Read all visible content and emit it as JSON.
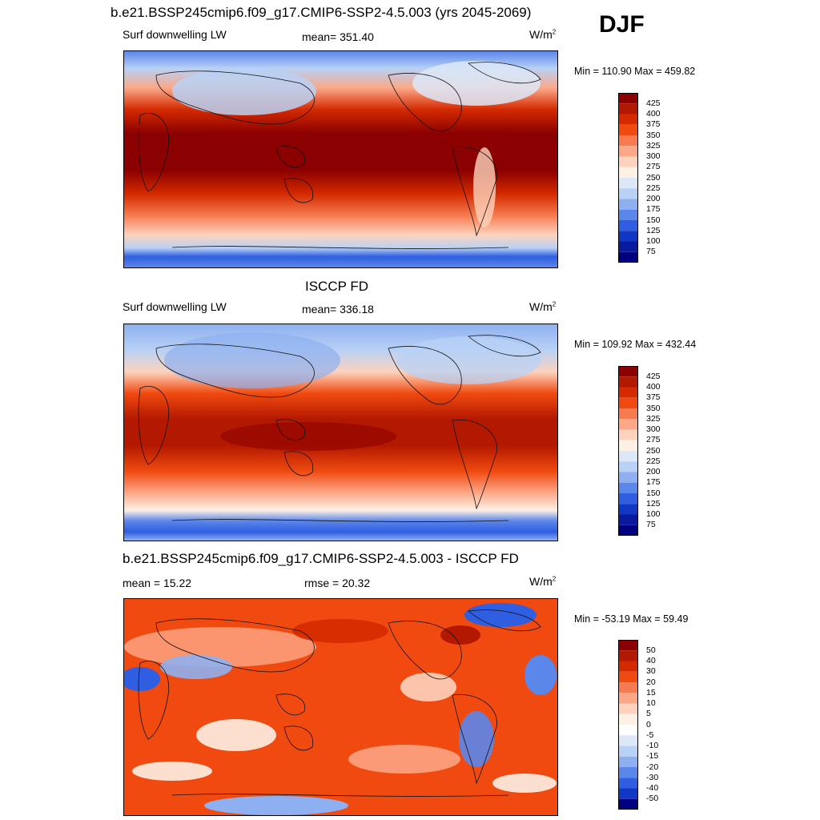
{
  "header": {
    "title": "b.e21.BSSP245cmip6.f09_g17.CMIP6-SSP2-4.5.003 (yrs 2045-2069)",
    "season": "DJF"
  },
  "panels": [
    {
      "variable": "Surf downwelling LW",
      "stat": "mean= 351.40",
      "unit_base": "W/m",
      "unit_sup": "2",
      "minmax": "Min = 110.90 Max = 459.82",
      "colorbar_labels": [
        "425",
        "400",
        "375",
        "350",
        "325",
        "300",
        "275",
        "250",
        "225",
        "200",
        "175",
        "150",
        "125",
        "100",
        "75"
      ]
    },
    {
      "title": "ISCCP FD",
      "variable": "Surf downwelling LW",
      "stat": "mean= 336.18",
      "unit_base": "W/m",
      "unit_sup": "2",
      "minmax": "Min = 109.92 Max = 432.44",
      "colorbar_labels": [
        "425",
        "400",
        "375",
        "350",
        "325",
        "300",
        "275",
        "250",
        "225",
        "200",
        "175",
        "150",
        "125",
        "100",
        "75"
      ]
    },
    {
      "title": "b.e21.BSSP245cmip6.f09_g17.CMIP6-SSP2-4.5.003 - ISCCP FD",
      "stat_left": "mean =  15.22",
      "stat_mid": "rmse =  20.32",
      "unit_base": "W/m",
      "unit_sup": "2",
      "minmax": "Min = -53.19 Max =  59.49",
      "colorbar_labels": [
        "50",
        "40",
        "30",
        "20",
        "15",
        "10",
        "5",
        "0",
        "-5",
        "-10",
        "-15",
        "-20",
        "-30",
        "-40",
        "-50"
      ]
    }
  ],
  "colors": {
    "abs_scale": [
      "#8b0000",
      "#b31800",
      "#d42a00",
      "#f04a10",
      "#f77b50",
      "#fca888",
      "#fdd3bd",
      "#fdf0e4",
      "#dce8f8",
      "#b8d1f5",
      "#8fb0f0",
      "#5b86ea",
      "#2f5ee0",
      "#1138c4",
      "#0a1a9e",
      "#000080"
    ],
    "diff_scale": [
      "#8b0000",
      "#b31800",
      "#d42a00",
      "#f04a10",
      "#f77b50",
      "#fca888",
      "#fdd3bd",
      "#fdf0e4",
      "#ffffff",
      "#dce8f8",
      "#b8d1f5",
      "#8fb0f0",
      "#5b86ea",
      "#2f5ee0",
      "#1138c4",
      "#000080"
    ]
  }
}
